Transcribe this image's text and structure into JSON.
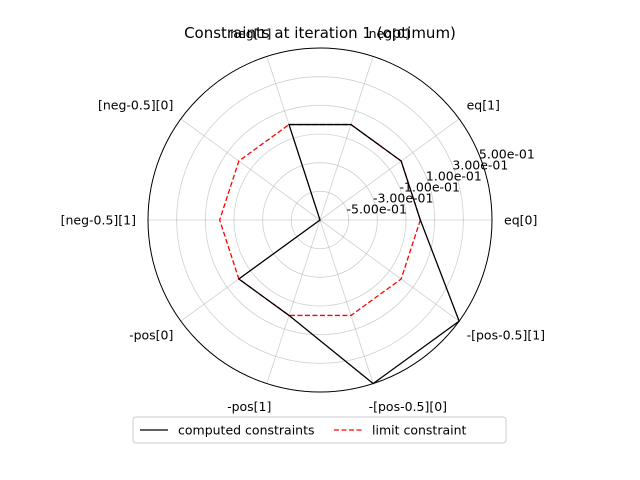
{
  "chart_data": {
    "type": "radar",
    "title": "Constraints at iteration 1 (optimum)",
    "categories": [
      "eq[0]",
      "eq[1]",
      "neg[0]",
      "neg[1]",
      "[neg-0.5][0]",
      "[neg-0.5][1]",
      "-pos[0]",
      "-pos[1]",
      "-[pos-0.5][0]",
      "-[pos-0.5][1]"
    ],
    "radial_ticks": [
      "-5.00e-01",
      "-3.00e-01",
      "-1.00e-01",
      "1.00e-01",
      "3.00e-01",
      "5.00e-01"
    ],
    "radial_tick_values": [
      -0.5,
      -0.3,
      -0.1,
      0.1,
      0.3,
      0.5
    ],
    "rlim": [
      -0.7,
      0.5
    ],
    "grid": true,
    "legend_location": "bottom-center",
    "series": [
      {
        "name": "computed constraints",
        "color": "#000000",
        "style": "solid",
        "values": [
          0.0,
          0.0,
          0.0,
          0.0,
          -0.7,
          -0.7,
          0.0,
          0.0,
          0.5,
          0.5
        ]
      },
      {
        "name": "limit constraint",
        "color": "#ff0000",
        "style": "dashed",
        "values": [
          0.0,
          0.0,
          0.0,
          0.0,
          0.0,
          0.0,
          0.0,
          0.0,
          0.0,
          0.0
        ]
      }
    ]
  }
}
